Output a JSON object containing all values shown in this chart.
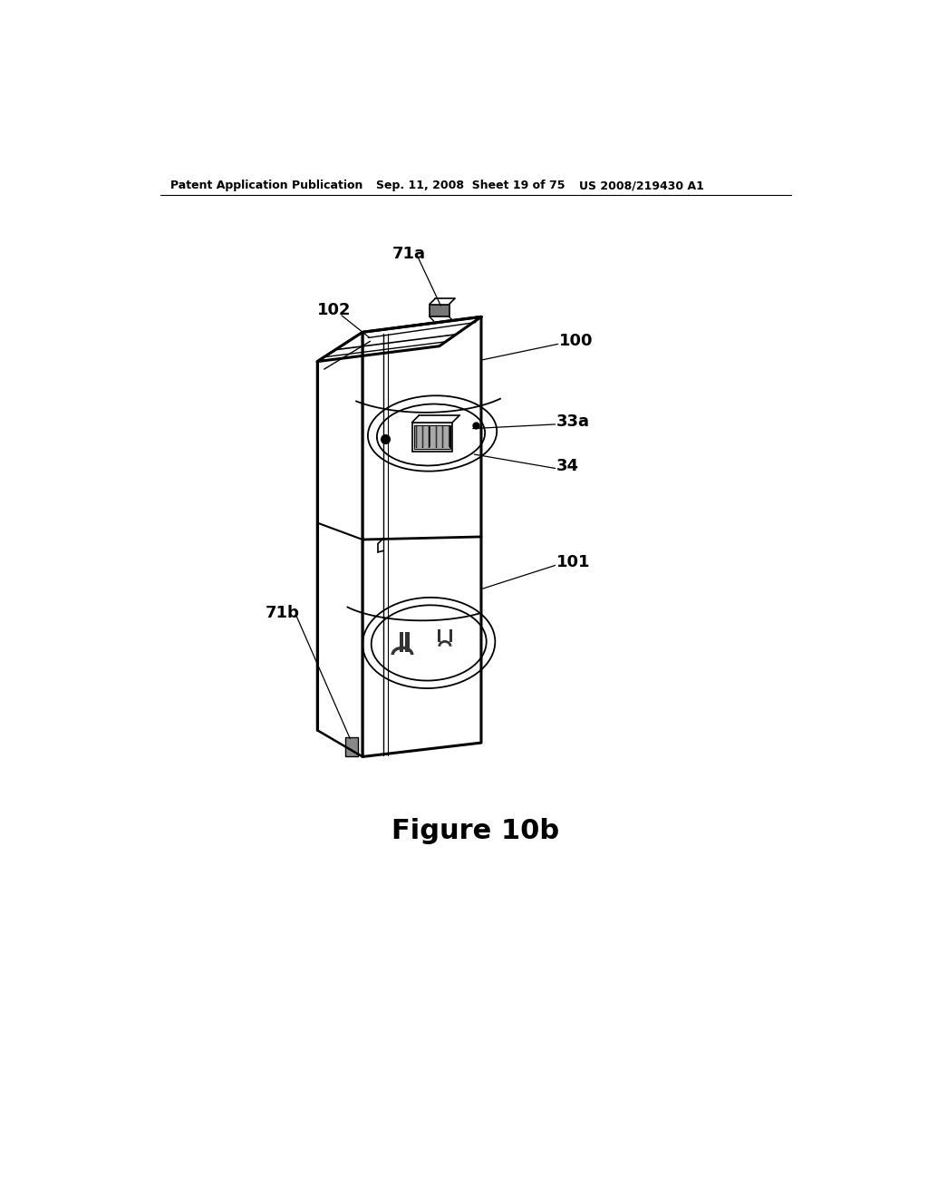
{
  "bg_color": "#ffffff",
  "header_left": "Patent Application Publication",
  "header_mid": "Sep. 11, 2008  Sheet 19 of 75",
  "header_right": "US 2008/219430 A1",
  "figure_caption": "Figure 10b",
  "line_color": "#000000",
  "label_fontsize": 13,
  "caption_fontsize": 22,
  "header_fontsize": 9
}
